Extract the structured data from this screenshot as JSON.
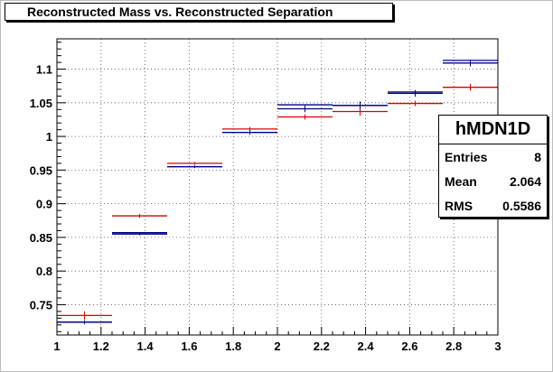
{
  "title": "Reconstructed Mass vs. Reconstructed Separation",
  "stats": {
    "name": "hMDN1D",
    "rows": [
      {
        "label": "Entries",
        "value": "8"
      },
      {
        "label": "Mean",
        "value": "2.064"
      },
      {
        "label": "RMS",
        "value": "0.5586"
      }
    ]
  },
  "colors": {
    "red": "#dd0000",
    "blue": "#000088",
    "axis": "#000000",
    "grid": "#555555"
  },
  "chart_data": {
    "type": "histogram",
    "title": "Reconstructed Mass vs. Reconstructed Separation",
    "xlabel": "",
    "ylabel": "",
    "xlim": [
      1,
      3
    ],
    "ylim": [
      0.705,
      1.145
    ],
    "grid": true,
    "bin_edges": [
      1,
      1.25,
      1.5,
      1.75,
      2,
      2.25,
      2.5,
      2.75,
      3
    ],
    "x_ticks": [
      "1",
      "1.2",
      "1.4",
      "1.6",
      "1.8",
      "2",
      "2.2",
      "2.4",
      "2.6",
      "2.8",
      "3"
    ],
    "x_tick_values": [
      1,
      1.2,
      1.4,
      1.6,
      1.8,
      2,
      2.2,
      2.4,
      2.6,
      2.8,
      3
    ],
    "y_ticks": [
      "0.75",
      "0.8",
      "0.85",
      "0.9",
      "0.95",
      "1",
      "1.05",
      "1.1"
    ],
    "y_tick_values": [
      0.75,
      0.8,
      0.85,
      0.9,
      0.95,
      1,
      1.05,
      1.1
    ],
    "series": [
      {
        "color": "red",
        "values": [
          0.732,
          0.88,
          0.958,
          1.009,
          1.027,
          1.035,
          1.047,
          1.071
        ],
        "errors": [
          0.006,
          0.003,
          0.002,
          0.003,
          0.004,
          0.006,
          0.004,
          0.005
        ],
        "offset": 0.002
      },
      {
        "color": "blue",
        "values": [
          0.726,
          0.857,
          0.957,
          1.008,
          1.043,
          1.048,
          1.066,
          1.111
        ],
        "errors": [
          0.003,
          0.002,
          0.002,
          0.003,
          0.005,
          0.006,
          0.005,
          0.005
        ],
        "offset": -0.002
      },
      {
        "color": "blue",
        "values": [
          0.724,
          0.857,
          0.955,
          1.006,
          1.047,
          1.046,
          1.066,
          1.113
        ],
        "errors": [
          0,
          0,
          0,
          0,
          0,
          0,
          0,
          0
        ],
        "offset": 0
      }
    ]
  }
}
